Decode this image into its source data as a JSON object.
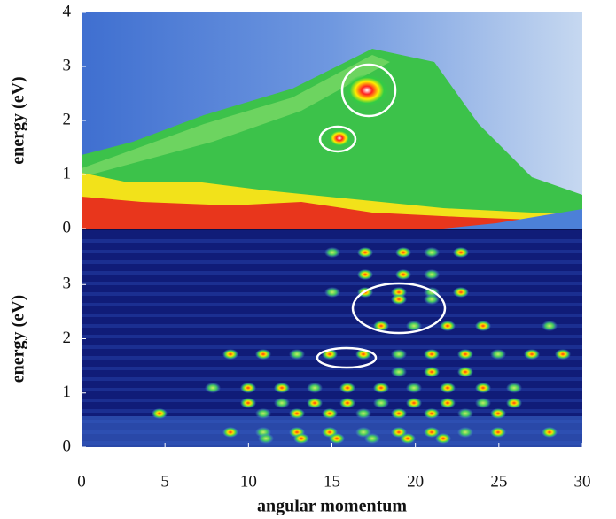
{
  "chart_data": [
    {
      "type": "heatmap",
      "ylabel": "energy (eV)",
      "xlim": [
        0,
        30
      ],
      "ylim": [
        0,
        4
      ],
      "yticks": [
        0,
        1,
        2,
        3,
        4
      ]
    },
    {
      "type": "heatmap",
      "xlabel": "angular momentum",
      "ylabel": "energy (eV)",
      "xlim": [
        0,
        30
      ],
      "ylim": [
        0,
        4
      ],
      "xticks": [
        0,
        5,
        10,
        15,
        20,
        25,
        30
      ],
      "yticks": [
        0,
        1,
        2,
        3
      ]
    }
  ]
}
